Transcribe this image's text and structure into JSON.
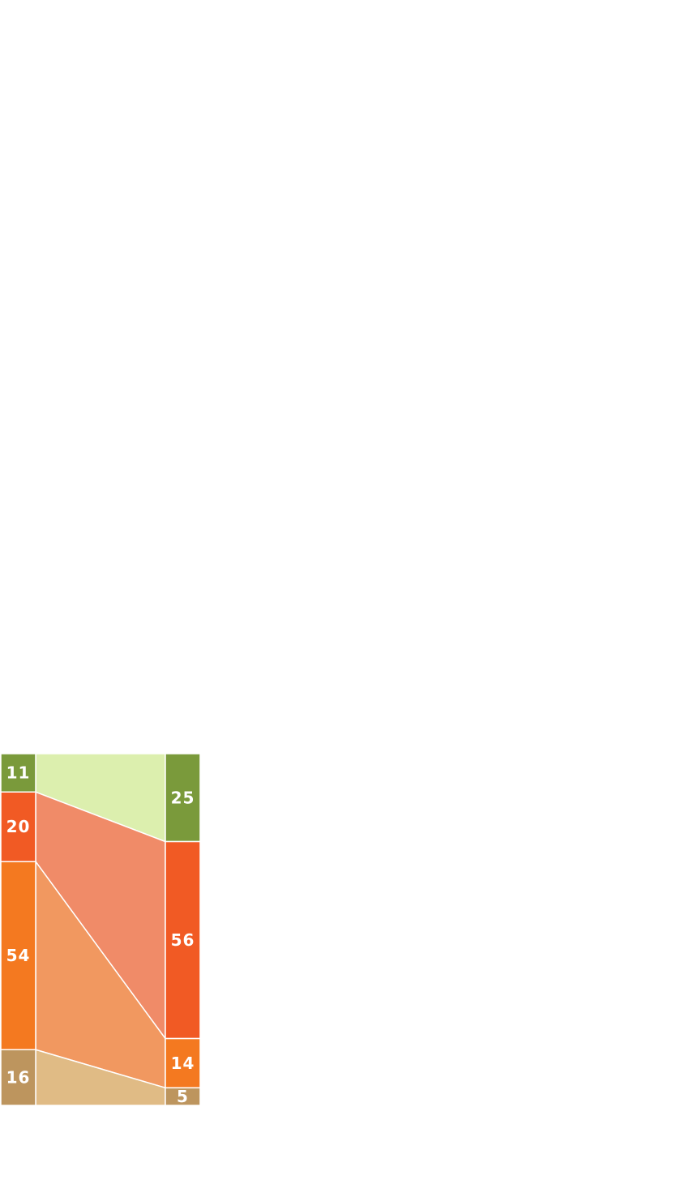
{
  "chart_data": {
    "type": "stacked-bar-comparison",
    "categories": [
      "left",
      "right"
    ],
    "series": [
      {
        "values": [
          11,
          25
        ],
        "color": "#7a9a3b",
        "band_color": "#dcefae"
      },
      {
        "values": [
          20,
          56
        ],
        "color": "#f15a24",
        "band_color": "#f08b68"
      },
      {
        "values": [
          54,
          14
        ],
        "color": "#f47920",
        "band_color": "#f19860"
      },
      {
        "values": [
          16,
          5
        ],
        "color": "#bd955e",
        "band_color": "#e0bb85"
      }
    ],
    "title": "",
    "xlabel": "",
    "ylabel": "",
    "legend": "none",
    "grid": false
  }
}
